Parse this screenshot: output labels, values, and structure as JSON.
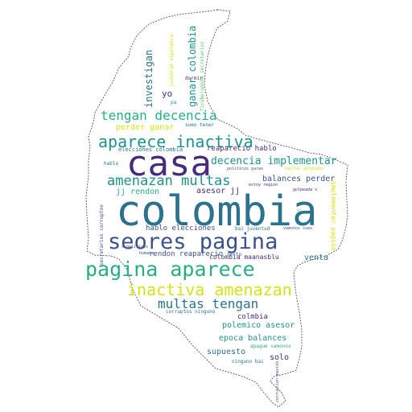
{
  "colors": {
    "dark_purple": "#472c7a",
    "blue": "#2c728e",
    "teal": "#21918c",
    "green": "#28ae80",
    "light_green": "#5ec962",
    "yellow": "#d2e21b",
    "navy": "#3b528b",
    "outline": "#555555"
  },
  "words": [
    {
      "text": "colombia"
    },
    {
      "text": "casa"
    },
    {
      "text": "seores pagina"
    },
    {
      "text": "pagina aparece"
    },
    {
      "text": "aparece inactiva"
    },
    {
      "text": "inactiva amenazan"
    },
    {
      "text": "amenazan multas"
    },
    {
      "text": "tengan decencia"
    },
    {
      "text": "multas tengan"
    },
    {
      "text": "decencia implementar"
    },
    {
      "text": "investigan"
    },
    {
      "text": "ganar colombia"
    },
    {
      "text": "yo"
    },
    {
      "text": "balances perder"
    },
    {
      "text": "perder ganar"
    },
    {
      "text": "asesor jj"
    },
    {
      "text": "jj rendon"
    },
    {
      "text": "hablo elecciones"
    },
    {
      "text": "rendon reaparecio"
    },
    {
      "text": "reaparecio hablo"
    },
    {
      "text": "elecciones colombia"
    },
    {
      "text": "colmbia"
    },
    {
      "text": "polemico asesor"
    },
    {
      "text": "epoca balances"
    },
    {
      "text": "supuesto"
    },
    {
      "text": "solo"
    },
    {
      "text": "venta"
    },
    {
      "text": "colombia maanasblu"
    },
    {
      "text": "implementar pagina"
    },
    {
      "text": "ficobejuende secretarios"
    },
    {
      "text": "juventud esperanza"
    },
    {
      "text": "secretarios corruptos"
    },
    {
      "text": "corruptos ninguno"
    },
    {
      "text": "ninguno bai"
    },
    {
      "text": "bai juventud"
    },
    {
      "text": "humana"
    },
    {
      "text": "resto"
    },
    {
      "text": "apague vamonos"
    },
    {
      "text": "sueo tener"
    },
    {
      "text": "dormir"
    },
    {
      "text": "pa"
    },
    {
      "text": "hablo"
    },
    {
      "text": "politicos paras"
    },
    {
      "text": "estoy region"
    },
    {
      "text": "golpeada x"
    },
    {
      "text": "vamonos sueo"
    },
    {
      "text": "x politicos"
    },
    {
      "text": "corrupcion masivo"
    },
    {
      "text": "vi"
    },
    {
      "text": "sueo tener"
    },
    {
      "text": "tayllas golpeada"
    }
  ]
}
